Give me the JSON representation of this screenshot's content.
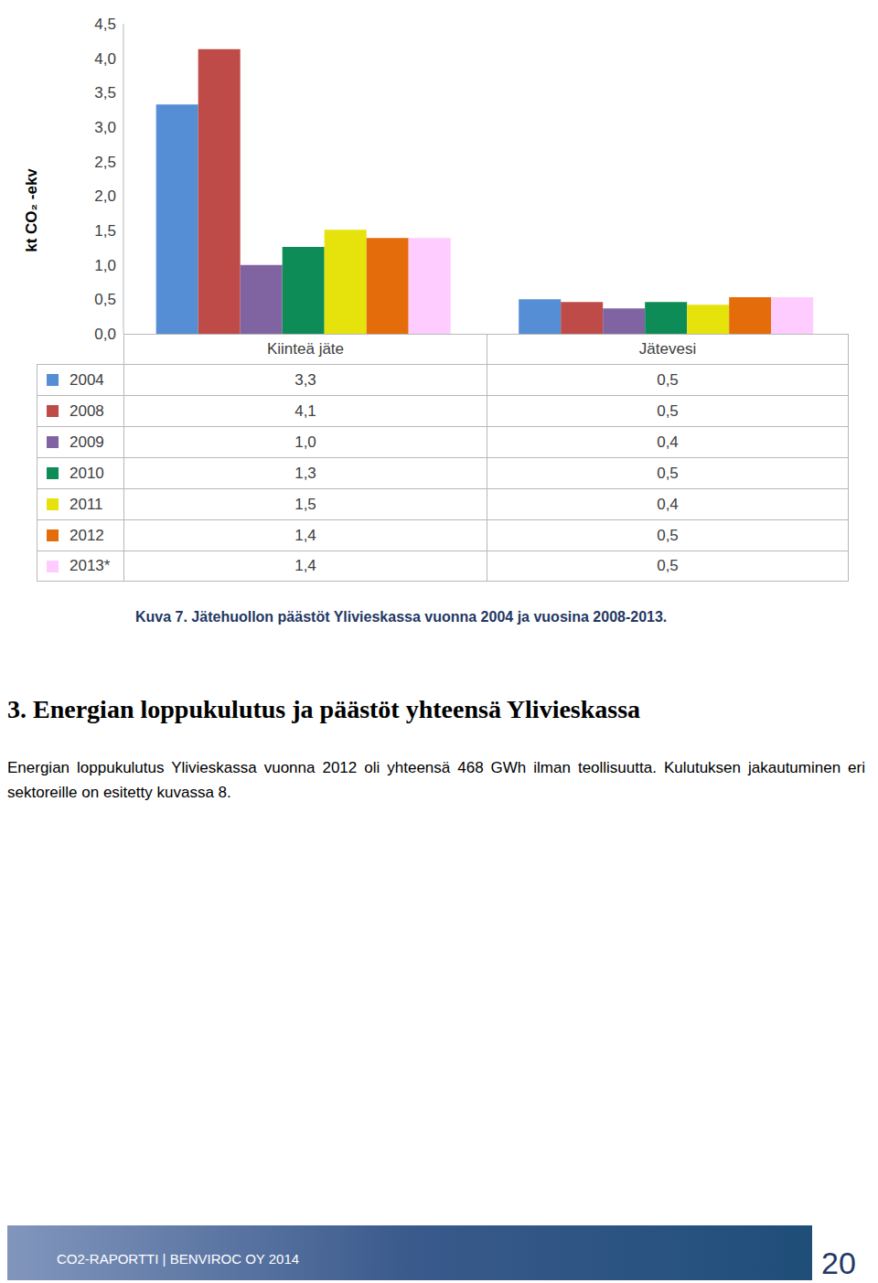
{
  "chart_data": {
    "type": "bar",
    "y_label": "kt CO₂ -ekv",
    "categories": [
      "Kiinteä jäte",
      "Jätevesi"
    ],
    "series": [
      {
        "name": "2004",
        "color": "#558ed5",
        "values": [
          3.33,
          0.5
        ],
        "value_labels": [
          "3,3",
          "0,5"
        ]
      },
      {
        "name": "2008",
        "color": "#be4b48",
        "values": [
          4.13,
          0.46
        ],
        "value_labels": [
          "4,1",
          "0,5"
        ]
      },
      {
        "name": "2009",
        "color": "#8064a2",
        "values": [
          1.0,
          0.37
        ],
        "value_labels": [
          "1,0",
          "0,4"
        ]
      },
      {
        "name": "2010",
        "color": "#0e8c57",
        "values": [
          1.26,
          0.46
        ],
        "value_labels": [
          "1,3",
          "0,5"
        ]
      },
      {
        "name": "2011",
        "color": "#e6e20c",
        "values": [
          1.51,
          0.42
        ],
        "value_labels": [
          "1,5",
          "0,4"
        ]
      },
      {
        "name": "2012",
        "color": "#e46c0a",
        "values": [
          1.39,
          0.53
        ],
        "value_labels": [
          "1,4",
          "0,5"
        ]
      },
      {
        "name": "2013*",
        "color": "#ffccff",
        "values": [
          1.39,
          0.53
        ],
        "value_labels": [
          "1,4",
          "0,5"
        ]
      }
    ],
    "ylim": [
      0,
      4.5
    ],
    "yticks": [
      {
        "value": 0,
        "label": "0,0"
      },
      {
        "value": 0.5,
        "label": "0,5"
      },
      {
        "value": 1,
        "label": "1,0"
      },
      {
        "value": 1.5,
        "label": "1,5"
      },
      {
        "value": 2,
        "label": "2,0"
      },
      {
        "value": 2.5,
        "label": "2,5"
      },
      {
        "value": 3,
        "label": "3,0"
      },
      {
        "value": 3.5,
        "label": "3,5"
      },
      {
        "value": 4,
        "label": "4,0"
      },
      {
        "value": 4.5,
        "label": "4,5"
      }
    ],
    "grid": false,
    "data_labels": true
  },
  "caption": "Kuva 7. Jätehuollon päästöt Ylivieskassa vuonna 2004 ja vuosina 2008-2013.",
  "heading": "3. Energian loppukulutus ja päästöt yhteensä Ylivieskassa",
  "paragraph": "Energian loppukulutus Ylivieskassa vuonna 2012 oli yhteensä 468 GWh ilman teollisuutta. Kulutuksen jakautuminen eri sektoreille on esitetty kuvassa 8.",
  "footer": {
    "text": "CO2-RAPORTTI | BENVIROC OY 2014",
    "page": "20"
  }
}
